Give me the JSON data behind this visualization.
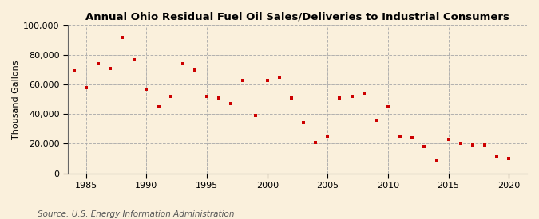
{
  "title": "Annual Ohio Residual Fuel Oil Sales/Deliveries to Industrial Consumers",
  "ylabel": "Thousand Gallons",
  "source": "Source: U.S. Energy Information Administration",
  "background_color": "#FAF0DC",
  "plot_background_color": "#FAF0DC",
  "marker_color": "#CC0000",
  "marker": "s",
  "marker_size": 3.5,
  "xlim": [
    1983.5,
    2021.5
  ],
  "ylim": [
    0,
    100000
  ],
  "yticks": [
    0,
    20000,
    40000,
    60000,
    80000,
    100000
  ],
  "xticks": [
    1985,
    1990,
    1995,
    2000,
    2005,
    2010,
    2015,
    2020
  ],
  "years": [
    1984,
    1985,
    1986,
    1987,
    1988,
    1989,
    1990,
    1991,
    1992,
    1993,
    1994,
    1995,
    1996,
    1997,
    1998,
    1999,
    2000,
    2001,
    2002,
    2003,
    2004,
    2005,
    2006,
    2007,
    2008,
    2009,
    2010,
    2011,
    2012,
    2013,
    2014,
    2015,
    2016,
    2017,
    2018,
    2019,
    2020
  ],
  "values": [
    69000,
    58000,
    74000,
    71000,
    92000,
    77000,
    57000,
    45000,
    52000,
    74000,
    70000,
    52000,
    51000,
    47000,
    63000,
    39000,
    63000,
    65000,
    51000,
    34000,
    21000,
    25000,
    51000,
    52000,
    54000,
    36000,
    45000,
    25000,
    24000,
    18000,
    8500,
    23000,
    20000,
    19000,
    19000,
    11000,
    10000
  ],
  "title_fontsize": 9.5,
  "axis_fontsize": 8,
  "source_fontsize": 7.5
}
